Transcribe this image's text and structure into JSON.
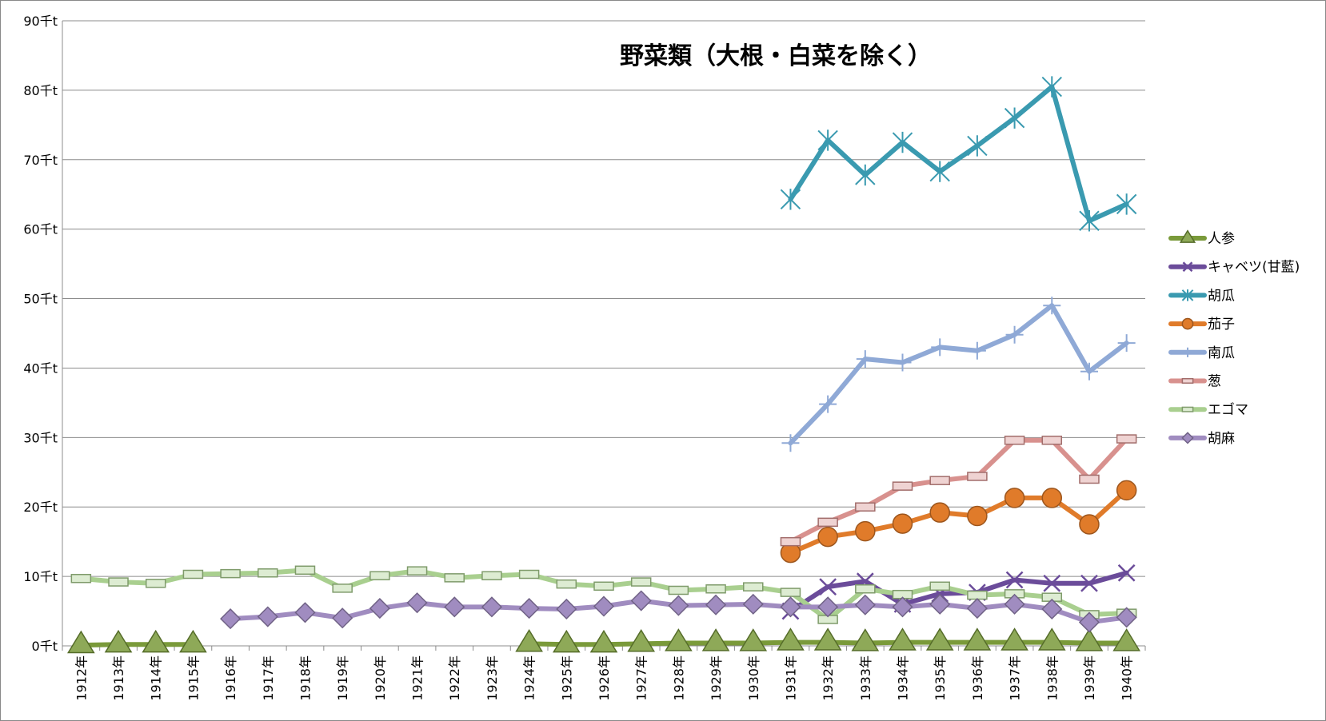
{
  "chart_data": {
    "type": "line",
    "title": "野菜類（大根・白菜を除く）",
    "xlabel": "",
    "ylabel": "",
    "ylim": [
      0,
      90
    ],
    "y_ticks": [
      {
        "value": 0,
        "label": "0千t"
      },
      {
        "value": 10,
        "label": "10千t"
      },
      {
        "value": 20,
        "label": "20千t"
      },
      {
        "value": 30,
        "label": "30千t"
      },
      {
        "value": 40,
        "label": "40千t"
      },
      {
        "value": 50,
        "label": "50千t"
      },
      {
        "value": 60,
        "label": "60千t"
      },
      {
        "value": 70,
        "label": "70千t"
      },
      {
        "value": 80,
        "label": "80千t"
      },
      {
        "value": 90,
        "label": "90千t"
      }
    ],
    "grid": true,
    "legend_position": "right",
    "categories": [
      "1912年",
      "1913年",
      "1914年",
      "1915年",
      "1916年",
      "1917年",
      "1918年",
      "1919年",
      "1920年",
      "1921年",
      "1922年",
      "1923年",
      "1924年",
      "1925年",
      "1926年",
      "1927年",
      "1928年",
      "1929年",
      "1930年",
      "1931年",
      "1932年",
      "1933年",
      "1934年",
      "1935年",
      "1936年",
      "1937年",
      "1938年",
      "1939年",
      "1940年"
    ],
    "series": [
      {
        "name": "人参",
        "color": "#7a9a3a",
        "marker": "triangle",
        "values": [
          0.1,
          0.2,
          0.2,
          0.2,
          null,
          null,
          null,
          null,
          null,
          null,
          null,
          null,
          0.3,
          0.2,
          0.2,
          0.3,
          0.4,
          0.4,
          0.4,
          0.5,
          0.5,
          0.4,
          0.5,
          0.5,
          0.5,
          0.5,
          0.5,
          0.4,
          0.4
        ]
      },
      {
        "name": "キャベツ(甘藍)",
        "color": "#6b4c9a",
        "marker": "x",
        "values": [
          null,
          null,
          null,
          null,
          null,
          null,
          null,
          null,
          null,
          null,
          null,
          null,
          null,
          null,
          null,
          null,
          null,
          null,
          null,
          5.0,
          8.5,
          9.3,
          6.0,
          7.5,
          7.7,
          9.5,
          9.0,
          9.0,
          10.5
        ]
      },
      {
        "name": "胡瓜",
        "color": "#3a9ab0",
        "marker": "asterisk",
        "values": [
          null,
          null,
          null,
          null,
          null,
          null,
          null,
          null,
          null,
          null,
          null,
          null,
          null,
          null,
          null,
          null,
          null,
          null,
          null,
          64.3,
          72.8,
          67.8,
          72.5,
          68.3,
          72.0,
          76.0,
          80.5,
          61.2,
          63.6
        ]
      },
      {
        "name": "茄子",
        "color": "#e07b2a",
        "marker": "circle",
        "values": [
          null,
          null,
          null,
          null,
          null,
          null,
          null,
          null,
          null,
          null,
          null,
          null,
          null,
          null,
          null,
          null,
          null,
          null,
          null,
          13.4,
          15.7,
          16.5,
          17.6,
          19.2,
          18.7,
          21.3,
          21.3,
          17.5,
          22.4
        ]
      },
      {
        "name": "南瓜",
        "color": "#8fa9d6",
        "marker": "plus",
        "values": [
          null,
          null,
          null,
          null,
          null,
          null,
          null,
          null,
          null,
          null,
          null,
          null,
          null,
          null,
          null,
          null,
          null,
          null,
          null,
          29.2,
          34.8,
          41.3,
          40.8,
          43.0,
          42.5,
          44.8,
          49.0,
          39.5,
          43.6
        ]
      },
      {
        "name": "葱",
        "color": "#d8918e",
        "marker": "dash",
        "values": [
          null,
          null,
          null,
          null,
          null,
          null,
          null,
          null,
          null,
          null,
          null,
          null,
          null,
          null,
          null,
          null,
          null,
          null,
          null,
          15.0,
          17.8,
          20.0,
          23.0,
          23.8,
          24.4,
          29.6,
          29.6,
          24.0,
          29.8
        ]
      },
      {
        "name": "エゴマ",
        "color": "#a9cf8f",
        "marker": "dash",
        "values": [
          9.7,
          9.2,
          9.0,
          10.3,
          10.4,
          10.5,
          10.9,
          8.3,
          10.1,
          10.8,
          9.8,
          10.1,
          10.3,
          8.9,
          8.6,
          9.2,
          8.0,
          8.2,
          8.5,
          7.7,
          3.8,
          8.2,
          7.4,
          8.6,
          7.3,
          7.5,
          7.0,
          4.5,
          4.7
        ]
      },
      {
        "name": "胡麻",
        "color": "#a08cc0",
        "marker": "diamond",
        "values": [
          null,
          null,
          null,
          null,
          3.9,
          4.2,
          4.8,
          4.0,
          5.4,
          6.2,
          5.6,
          5.6,
          5.4,
          5.3,
          5.7,
          6.5,
          5.8,
          5.9,
          6.0,
          5.6,
          5.6,
          5.9,
          5.6,
          6.0,
          5.4,
          6.0,
          5.3,
          3.4,
          4.1
        ]
      }
    ]
  }
}
